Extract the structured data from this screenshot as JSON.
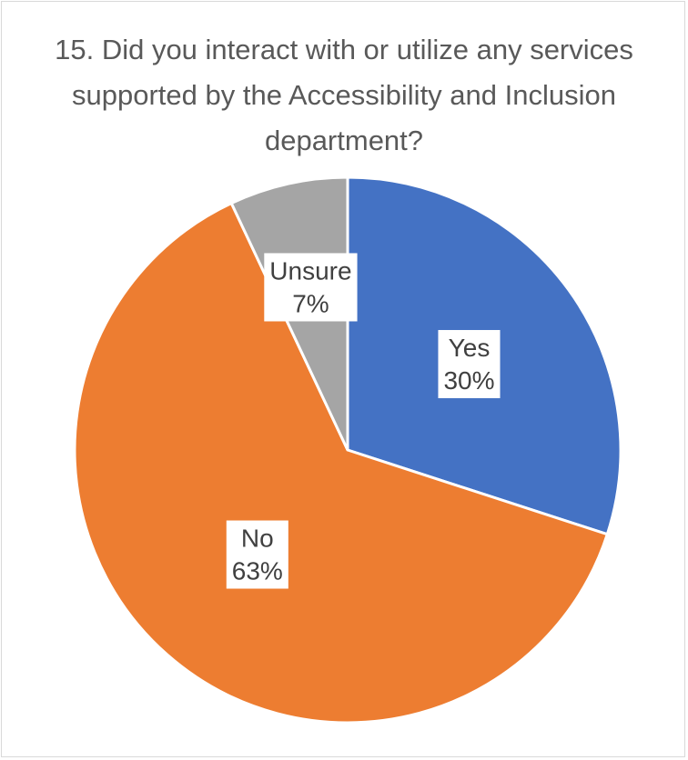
{
  "chart_data": {
    "type": "pie",
    "title": "15. Did you interact with or utilize any services supported by the Accessibility and Inclusion department?",
    "start_angle_deg": 0,
    "direction": "clockwise",
    "slices": [
      {
        "category": "Yes",
        "value": 30,
        "label_text": "30%",
        "color": "#4472C4"
      },
      {
        "category": "No",
        "value": 63,
        "label_text": "63%",
        "color": "#ED7D31"
      },
      {
        "category": "Unsure",
        "value": 7,
        "label_text": "7%",
        "color": "#A5A5A5"
      }
    ],
    "legend": false
  },
  "colors": {
    "border": "#d9d9d9",
    "text": "#404040",
    "title_text": "#595959",
    "label_box": "#ffffff"
  }
}
